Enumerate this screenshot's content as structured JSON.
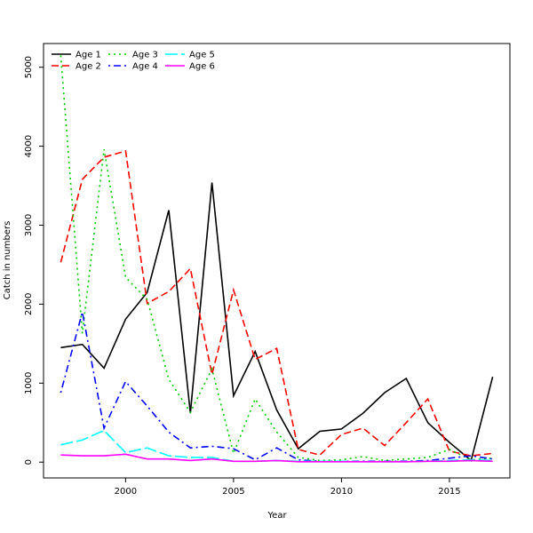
{
  "chart_data": {
    "type": "line",
    "xlabel": "Year",
    "ylabel": "Catch in numbers",
    "xlim": [
      1996.2,
      2017.8
    ],
    "ylim": [
      -200,
      5300
    ],
    "x_ticks": [
      2000,
      2005,
      2010,
      2015
    ],
    "y_ticks": [
      0,
      1000,
      2000,
      3000,
      4000,
      5000
    ],
    "grid": false,
    "legend_position": "top-left",
    "x": [
      1997,
      1998,
      1999,
      2000,
      2001,
      2002,
      2003,
      2004,
      2005,
      2006,
      2007,
      2008,
      2009,
      2010,
      2011,
      2012,
      2013,
      2014,
      2015,
      2016,
      2017
    ],
    "series": [
      {
        "name": "Age 1",
        "color": "#000000",
        "dash": "solid",
        "values": [
          1450,
          1490,
          1190,
          1810,
          2150,
          3190,
          620,
          3540,
          840,
          1400,
          660,
          170,
          390,
          420,
          620,
          880,
          1060,
          500,
          250,
          20,
          1080
        ]
      },
      {
        "name": "Age 2",
        "color": "#ff0000",
        "dash": "dashed",
        "values": [
          2530,
          3580,
          3860,
          3940,
          2010,
          2160,
          2450,
          1110,
          2180,
          1300,
          1440,
          160,
          90,
          350,
          430,
          210,
          500,
          800,
          140,
          80,
          110
        ]
      },
      {
        "name": "Age 3",
        "color": "#00cd00",
        "dash": "dotted",
        "values": [
          5150,
          1630,
          3960,
          2340,
          2060,
          1050,
          630,
          1180,
          110,
          800,
          380,
          60,
          20,
          30,
          70,
          20,
          40,
          60,
          160,
          30,
          50
        ]
      },
      {
        "name": "Age 4",
        "color": "#0000ff",
        "dash": "dotdash",
        "values": [
          880,
          1900,
          430,
          1020,
          710,
          380,
          180,
          200,
          170,
          30,
          180,
          30,
          10,
          10,
          10,
          10,
          10,
          20,
          50,
          80,
          40
        ]
      },
      {
        "name": "Age 5",
        "color": "#00ffff",
        "dash": "longdash",
        "values": [
          220,
          280,
          400,
          120,
          180,
          80,
          60,
          60,
          10,
          10,
          20,
          10,
          10,
          10,
          5,
          5,
          5,
          10,
          20,
          30,
          20
        ]
      },
      {
        "name": "Age 6",
        "color": "#ff00ff",
        "dash": "solid",
        "values": [
          90,
          80,
          80,
          100,
          40,
          40,
          20,
          40,
          10,
          10,
          20,
          5,
          5,
          5,
          5,
          5,
          5,
          10,
          10,
          20,
          10
        ]
      }
    ]
  }
}
